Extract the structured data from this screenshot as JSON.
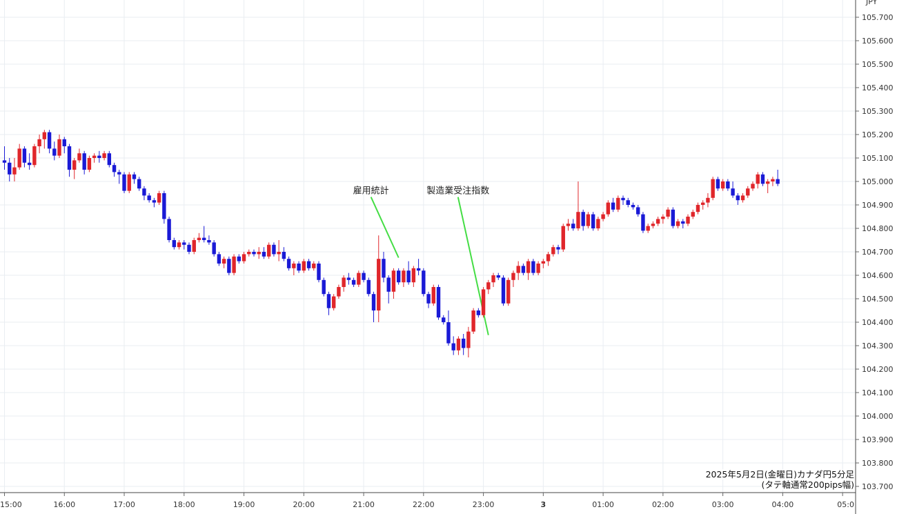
{
  "chart_data": {
    "type": "candlestick",
    "currency_label": "JPY",
    "caption_line1": "2025年5月2日(金曜日)カナダ円5分足",
    "caption_line2": "(タテ軸通常200pips幅)",
    "ylim": [
      103.7,
      105.73
    ],
    "grid": true,
    "y_ticks": [
      "105.700",
      "105.600",
      "105.500",
      "105.400",
      "105.300",
      "105.200",
      "105.100",
      "105.000",
      "104.900",
      "104.800",
      "104.700",
      "104.600",
      "104.500",
      "104.400",
      "104.300",
      "104.200",
      "104.100",
      "104.000",
      "103.900",
      "103.800",
      "103.700"
    ],
    "x_ticks": [
      {
        "label": "15:00",
        "bar": 0
      },
      {
        "label": "16:00",
        "bar": 12
      },
      {
        "label": "17:00",
        "bar": 24
      },
      {
        "label": "18:00",
        "bar": 36
      },
      {
        "label": "19:00",
        "bar": 48
      },
      {
        "label": "20:00",
        "bar": 60
      },
      {
        "label": "21:00",
        "bar": 72
      },
      {
        "label": "22:00",
        "bar": 84
      },
      {
        "label": "23:00",
        "bar": 96
      },
      {
        "label": "3",
        "bar": 108
      },
      {
        "label": "01:00",
        "bar": 120
      },
      {
        "label": "02:00",
        "bar": 132
      },
      {
        "label": "03:00",
        "bar": 144
      },
      {
        "label": "04:00",
        "bar": 156
      },
      {
        "label": "05:0",
        "bar": 168
      }
    ],
    "up_color": "#e0262b",
    "down_color": "#1a1ad6",
    "annotation_color": "#44dd44",
    "annotations": [
      {
        "text": "雇用統計",
        "bar": 79,
        "price": 104.675,
        "label_price": 104.96
      },
      {
        "text": "製造業受注指数",
        "bar": 97,
        "price": 104.345,
        "label_price": 104.96
      }
    ],
    "candles": [
      [
        105.09,
        105.15,
        105.05,
        105.08
      ],
      [
        105.08,
        105.1,
        105.0,
        105.03
      ],
      [
        105.03,
        105.1,
        105.0,
        105.06
      ],
      [
        105.06,
        105.16,
        105.05,
        105.14
      ],
      [
        105.14,
        105.15,
        105.06,
        105.08
      ],
      [
        105.08,
        105.12,
        105.05,
        105.07
      ],
      [
        105.07,
        105.16,
        105.06,
        105.15
      ],
      [
        105.15,
        105.2,
        105.12,
        105.18
      ],
      [
        105.18,
        105.22,
        105.14,
        105.21
      ],
      [
        105.21,
        105.22,
        105.12,
        105.14
      ],
      [
        105.14,
        105.17,
        105.09,
        105.11
      ],
      [
        105.11,
        105.2,
        105.1,
        105.18
      ],
      [
        105.18,
        105.19,
        105.12,
        105.15
      ],
      [
        105.15,
        105.16,
        105.02,
        105.05
      ],
      [
        105.05,
        105.1,
        105.01,
        105.09
      ],
      [
        105.09,
        105.14,
        105.08,
        105.12
      ],
      [
        105.12,
        105.13,
        105.03,
        105.05
      ],
      [
        105.05,
        105.11,
        105.04,
        105.1
      ],
      [
        105.1,
        105.12,
        105.08,
        105.11
      ],
      [
        105.11,
        105.13,
        105.08,
        105.1
      ],
      [
        105.1,
        105.13,
        105.09,
        105.12
      ],
      [
        105.12,
        105.13,
        105.06,
        105.07
      ],
      [
        105.07,
        105.08,
        105.02,
        105.04
      ],
      [
        105.04,
        105.05,
        104.99,
        105.03
      ],
      [
        105.03,
        105.04,
        104.95,
        104.96
      ],
      [
        104.96,
        105.04,
        104.95,
        105.03
      ],
      [
        105.03,
        105.04,
        104.99,
        105.01
      ],
      [
        105.01,
        105.02,
        104.96,
        104.97
      ],
      [
        104.97,
        104.98,
        104.92,
        104.94
      ],
      [
        104.94,
        104.95,
        104.91,
        104.92
      ],
      [
        104.92,
        104.93,
        104.89,
        104.91
      ],
      [
        104.91,
        104.96,
        104.9,
        104.95
      ],
      [
        104.95,
        104.96,
        104.82,
        104.84
      ],
      [
        104.84,
        104.85,
        104.74,
        104.75
      ],
      [
        104.75,
        104.76,
        104.71,
        104.72
      ],
      [
        104.72,
        104.75,
        104.71,
        104.74
      ],
      [
        104.74,
        104.75,
        104.71,
        104.73
      ],
      [
        104.73,
        104.74,
        104.69,
        104.7
      ],
      [
        104.7,
        104.76,
        104.69,
        104.75
      ],
      [
        104.75,
        104.78,
        104.74,
        104.76
      ],
      [
        104.76,
        104.81,
        104.74,
        104.75
      ],
      [
        104.75,
        104.77,
        104.73,
        104.74
      ],
      [
        104.74,
        104.75,
        104.68,
        104.69
      ],
      [
        104.69,
        104.7,
        104.64,
        104.65
      ],
      [
        104.65,
        104.68,
        104.63,
        104.67
      ],
      [
        104.67,
        104.68,
        104.6,
        104.61
      ],
      [
        104.61,
        104.69,
        104.6,
        104.68
      ],
      [
        104.68,
        104.69,
        104.65,
        104.66
      ],
      [
        104.66,
        104.7,
        104.65,
        104.69
      ],
      [
        104.69,
        104.71,
        104.68,
        104.7
      ],
      [
        104.7,
        104.71,
        104.68,
        104.69
      ],
      [
        104.69,
        104.72,
        104.67,
        104.7
      ],
      [
        104.7,
        104.72,
        104.67,
        104.68
      ],
      [
        104.68,
        104.74,
        104.67,
        104.73
      ],
      [
        104.73,
        104.74,
        104.68,
        104.69
      ],
      [
        104.69,
        104.75,
        104.66,
        104.7
      ],
      [
        104.7,
        104.72,
        104.66,
        104.67
      ],
      [
        104.67,
        104.68,
        104.62,
        104.63
      ],
      [
        104.63,
        104.66,
        104.6,
        104.65
      ],
      [
        104.65,
        104.66,
        104.61,
        104.62
      ],
      [
        104.62,
        104.67,
        104.61,
        104.66
      ],
      [
        104.66,
        104.67,
        104.62,
        104.63
      ],
      [
        104.63,
        104.66,
        104.62,
        104.65
      ],
      [
        104.65,
        104.66,
        104.57,
        104.58
      ],
      [
        104.58,
        104.59,
        104.51,
        104.52
      ],
      [
        104.52,
        104.53,
        104.43,
        104.46
      ],
      [
        104.46,
        104.52,
        104.45,
        104.51
      ],
      [
        104.51,
        104.56,
        104.5,
        104.55
      ],
      [
        104.55,
        104.6,
        104.53,
        104.59
      ],
      [
        104.59,
        104.61,
        104.56,
        104.58
      ],
      [
        104.58,
        104.59,
        104.55,
        104.56
      ],
      [
        104.56,
        104.62,
        104.55,
        104.61
      ],
      [
        104.61,
        104.62,
        104.57,
        104.58
      ],
      [
        104.58,
        104.59,
        104.51,
        104.52
      ],
      [
        104.52,
        104.53,
        104.4,
        104.45
      ],
      [
        104.45,
        104.77,
        104.4,
        104.67
      ],
      [
        104.67,
        104.7,
        104.57,
        104.59
      ],
      [
        104.59,
        104.6,
        104.48,
        104.53
      ],
      [
        104.53,
        104.63,
        104.5,
        104.62
      ],
      [
        104.62,
        104.63,
        104.56,
        104.57
      ],
      [
        104.57,
        104.63,
        104.55,
        104.62
      ],
      [
        104.62,
        104.66,
        104.56,
        104.57
      ],
      [
        104.57,
        104.64,
        104.55,
        104.63
      ],
      [
        104.63,
        104.67,
        104.6,
        104.62
      ],
      [
        104.62,
        104.63,
        104.51,
        104.52
      ],
      [
        104.52,
        104.53,
        104.46,
        104.48
      ],
      [
        104.48,
        104.56,
        104.47,
        104.55
      ],
      [
        104.55,
        104.56,
        104.41,
        104.42
      ],
      [
        104.42,
        104.43,
        104.39,
        104.4
      ],
      [
        104.4,
        104.45,
        104.3,
        104.31
      ],
      [
        104.31,
        104.34,
        104.26,
        104.28
      ],
      [
        104.28,
        104.34,
        104.26,
        104.33
      ],
      [
        104.33,
        104.35,
        104.26,
        104.29
      ],
      [
        104.29,
        104.38,
        104.25,
        104.36
      ],
      [
        104.36,
        104.46,
        104.35,
        104.45
      ],
      [
        104.45,
        104.46,
        104.42,
        104.43
      ],
      [
        104.43,
        104.55,
        104.42,
        104.54
      ],
      [
        104.54,
        104.58,
        104.52,
        104.57
      ],
      [
        104.57,
        104.61,
        104.55,
        104.6
      ],
      [
        104.6,
        104.61,
        104.58,
        104.59
      ],
      [
        104.59,
        104.6,
        104.47,
        104.48
      ],
      [
        104.48,
        104.59,
        104.47,
        104.58
      ],
      [
        104.58,
        104.62,
        104.55,
        104.61
      ],
      [
        104.61,
        104.66,
        104.58,
        104.64
      ],
      [
        104.64,
        104.65,
        104.6,
        104.61
      ],
      [
        104.61,
        104.67,
        104.58,
        104.66
      ],
      [
        104.66,
        104.67,
        104.6,
        104.61
      ],
      [
        104.61,
        104.66,
        104.6,
        104.65
      ],
      [
        104.65,
        104.67,
        104.63,
        104.66
      ],
      [
        104.66,
        104.7,
        104.64,
        104.69
      ],
      [
        104.69,
        104.73,
        104.68,
        104.72
      ],
      [
        104.72,
        104.73,
        104.69,
        104.71
      ],
      [
        104.71,
        104.82,
        104.7,
        104.81
      ],
      [
        104.81,
        104.84,
        104.79,
        104.82
      ],
      [
        104.82,
        104.84,
        104.79,
        104.8
      ],
      [
        104.8,
        105.0,
        104.79,
        104.87
      ],
      [
        104.87,
        104.88,
        104.79,
        104.81
      ],
      [
        104.81,
        104.87,
        104.8,
        104.86
      ],
      [
        104.86,
        104.87,
        104.79,
        104.8
      ],
      [
        104.8,
        104.85,
        104.79,
        104.84
      ],
      [
        104.84,
        104.87,
        104.83,
        104.86
      ],
      [
        104.86,
        104.92,
        104.85,
        104.91
      ],
      [
        104.91,
        104.93,
        104.87,
        104.88
      ],
      [
        104.88,
        104.94,
        104.87,
        104.93
      ],
      [
        104.93,
        104.94,
        104.9,
        104.92
      ],
      [
        104.92,
        104.93,
        104.89,
        104.9
      ],
      [
        104.9,
        104.91,
        104.88,
        104.89
      ],
      [
        104.89,
        104.9,
        104.85,
        104.86
      ],
      [
        104.86,
        104.87,
        104.78,
        104.79
      ],
      [
        104.79,
        104.82,
        104.78,
        104.81
      ],
      [
        104.81,
        104.83,
        104.8,
        104.82
      ],
      [
        104.82,
        104.85,
        104.81,
        104.84
      ],
      [
        104.84,
        104.86,
        104.82,
        104.85
      ],
      [
        104.85,
        104.89,
        104.84,
        104.88
      ],
      [
        104.88,
        104.89,
        104.8,
        104.81
      ],
      [
        104.81,
        104.84,
        104.8,
        104.83
      ],
      [
        104.83,
        104.84,
        104.8,
        104.82
      ],
      [
        104.82,
        104.86,
        104.81,
        104.85
      ],
      [
        104.85,
        104.88,
        104.84,
        104.87
      ],
      [
        104.87,
        104.91,
        104.86,
        104.9
      ],
      [
        104.9,
        104.92,
        104.88,
        104.91
      ],
      [
        104.91,
        104.95,
        104.89,
        104.93
      ],
      [
        104.93,
        105.02,
        104.92,
        105.01
      ],
      [
        105.01,
        105.02,
        104.96,
        104.97
      ],
      [
        104.97,
        105.01,
        104.96,
        105.0
      ],
      [
        105.0,
        105.01,
        104.96,
        104.97
      ],
      [
        104.97,
        105.0,
        104.93,
        104.94
      ],
      [
        104.94,
        104.95,
        104.9,
        104.92
      ],
      [
        104.92,
        104.95,
        104.91,
        104.94
      ],
      [
        104.94,
        104.98,
        104.93,
        104.97
      ],
      [
        104.97,
        105.0,
        104.96,
        104.99
      ],
      [
        104.99,
        105.04,
        104.97,
        105.03
      ],
      [
        105.03,
        105.04,
        104.98,
        104.99
      ],
      [
        104.99,
        105.01,
        104.95,
        105.0
      ],
      [
        105.0,
        105.02,
        104.98,
        105.01
      ],
      [
        105.01,
        105.05,
        104.98,
        104.99
      ]
    ]
  }
}
